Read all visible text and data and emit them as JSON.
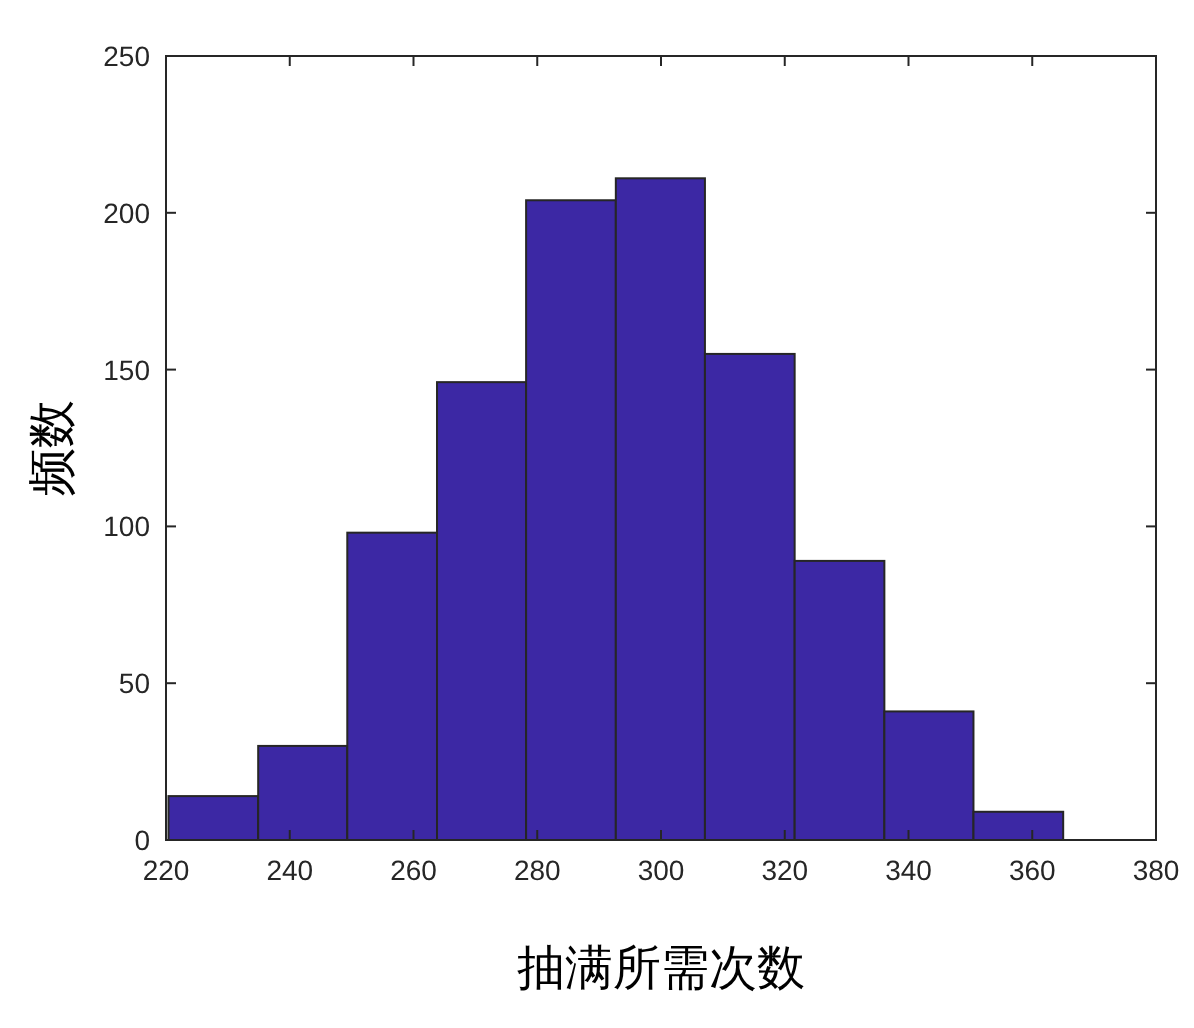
{
  "chart_data": {
    "type": "histogram",
    "bins": [
      220.4,
      234.9,
      249.3,
      263.8,
      278.2,
      292.7,
      307.1,
      321.6,
      336.1,
      350.5,
      365.0
    ],
    "values": [
      14,
      30,
      98,
      146,
      204,
      211,
      155,
      89,
      41,
      9
    ],
    "color": "#3c28a4",
    "xlabel": "抽满所需次数",
    "ylabel": "频数",
    "xlim": [
      220,
      380
    ],
    "xticks": [
      220,
      240,
      260,
      280,
      300,
      320,
      340,
      360,
      380
    ],
    "ylim": [
      0,
      250
    ],
    "yticks": [
      0,
      50,
      100,
      150,
      200,
      250
    ]
  }
}
